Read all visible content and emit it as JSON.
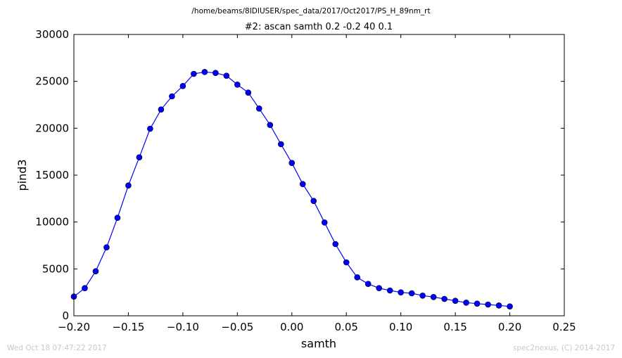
{
  "header": {
    "path": "/home/beams/8IDIUSER/spec_data/2017/Oct2017/PS_H_89nm_rt"
  },
  "footer": {
    "timestamp": "Wed Oct 18 07:47:22 2017",
    "credit": "spec2nexus, (C) 2014-2017"
  },
  "chart_data": {
    "type": "line",
    "title": "#2: ascan  samth 0.2 -0.2  40 0.1",
    "xlabel": "samth",
    "ylabel": "pind3",
    "xlim": [
      -0.2,
      0.25
    ],
    "ylim": [
      0,
      30000
    ],
    "xticks": [
      "−0.20",
      "−0.15",
      "−0.10",
      "−0.05",
      "0.00",
      "0.05",
      "0.10",
      "0.15",
      "0.20",
      "0.25"
    ],
    "yticks": [
      "0",
      "5000",
      "10000",
      "15000",
      "20000",
      "25000",
      "30000"
    ],
    "grid": false,
    "series_color": "#0000ff",
    "marker": "circle",
    "x": [
      -0.2,
      -0.19,
      -0.18,
      -0.17,
      -0.16,
      -0.15,
      -0.14,
      -0.13,
      -0.12,
      -0.11,
      -0.1,
      -0.09,
      -0.08,
      -0.07,
      -0.06,
      -0.05,
      -0.04,
      -0.03,
      -0.02,
      -0.01,
      0.0,
      0.01,
      0.02,
      0.03,
      0.04,
      0.05,
      0.06,
      0.07,
      0.08,
      0.09,
      0.1,
      0.11,
      0.12,
      0.13,
      0.14,
      0.15,
      0.16,
      0.17,
      0.18,
      0.19,
      0.2
    ],
    "y": [
      2050,
      2950,
      4750,
      7300,
      10450,
      13900,
      16900,
      19950,
      22000,
      23400,
      24500,
      25800,
      26000,
      25900,
      25600,
      24650,
      23800,
      22100,
      20350,
      18300,
      16300,
      14050,
      12250,
      9950,
      7650,
      5700,
      4100,
      3400,
      2950,
      2700,
      2500,
      2400,
      2150,
      2000,
      1800,
      1600,
      1400,
      1300,
      1200,
      1100,
      1000
    ]
  }
}
